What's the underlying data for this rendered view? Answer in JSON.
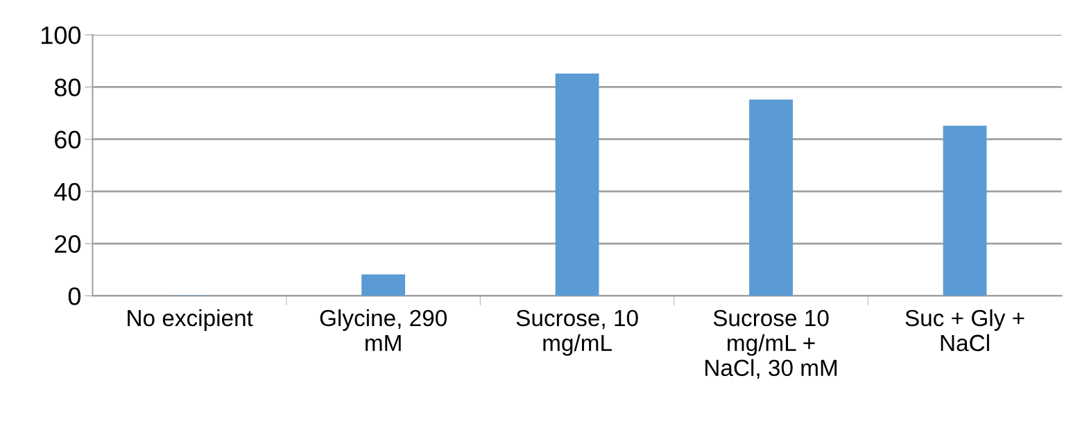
{
  "chart_data": {
    "type": "bar",
    "categories": [
      "No excipient",
      "Glycine, 290\nmM",
      "Sucrose, 10\nmg/mL",
      "Sucrose 10\nmg/mL +\nNaCl, 30 mM",
      "Suc + Gly +\nNaCl"
    ],
    "values": [
      0,
      8,
      85,
      75,
      65
    ],
    "color": "#5b9bd5",
    "ylim": [
      0,
      100
    ],
    "yticks": [
      0,
      20,
      40,
      60,
      80,
      100
    ],
    "grid": "y"
  }
}
